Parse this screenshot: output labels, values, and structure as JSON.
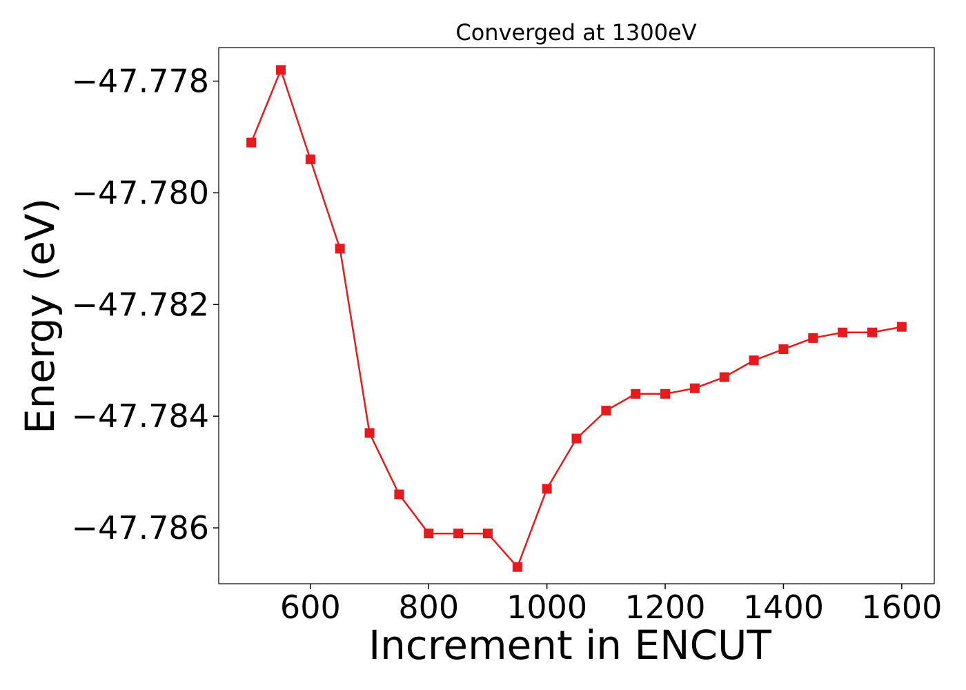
{
  "chart_data": {
    "type": "line",
    "title": "Converged at 1300eV",
    "xlabel": "Increment in ENCUT",
    "ylabel": "Energy (eV)",
    "xlim": [
      445,
      1655
    ],
    "ylim": [
      -47.787,
      -47.7774
    ],
    "xticks": [
      600,
      800,
      1000,
      1200,
      1400,
      1600
    ],
    "xtick_labels": [
      "600",
      "800",
      "1000",
      "1200",
      "1400",
      "1600"
    ],
    "yticks": [
      -47.778,
      -47.78,
      -47.782,
      -47.784,
      -47.786
    ],
    "ytick_labels": [
      "−47.778",
      "−47.780",
      "−47.782",
      "−47.784",
      "−47.786"
    ],
    "grid": false,
    "series": [
      {
        "color": "#e41a1c",
        "marker": "square",
        "x": [
          500,
          550,
          600,
          650,
          700,
          750,
          800,
          850,
          900,
          950,
          1000,
          1050,
          1100,
          1150,
          1200,
          1250,
          1300,
          1350,
          1400,
          1450,
          1500,
          1550,
          1600
        ],
        "y": [
          -47.7791,
          -47.7778,
          -47.7794,
          -47.781,
          -47.7843,
          -47.7854,
          -47.7861,
          -47.7861,
          -47.7861,
          -47.7867,
          -47.7853,
          -47.7844,
          -47.7839,
          -47.7836,
          -47.7836,
          -47.7835,
          -47.7833,
          -47.783,
          -47.7828,
          -47.7826,
          -47.7825,
          -47.7825,
          -47.7824
        ]
      }
    ]
  }
}
